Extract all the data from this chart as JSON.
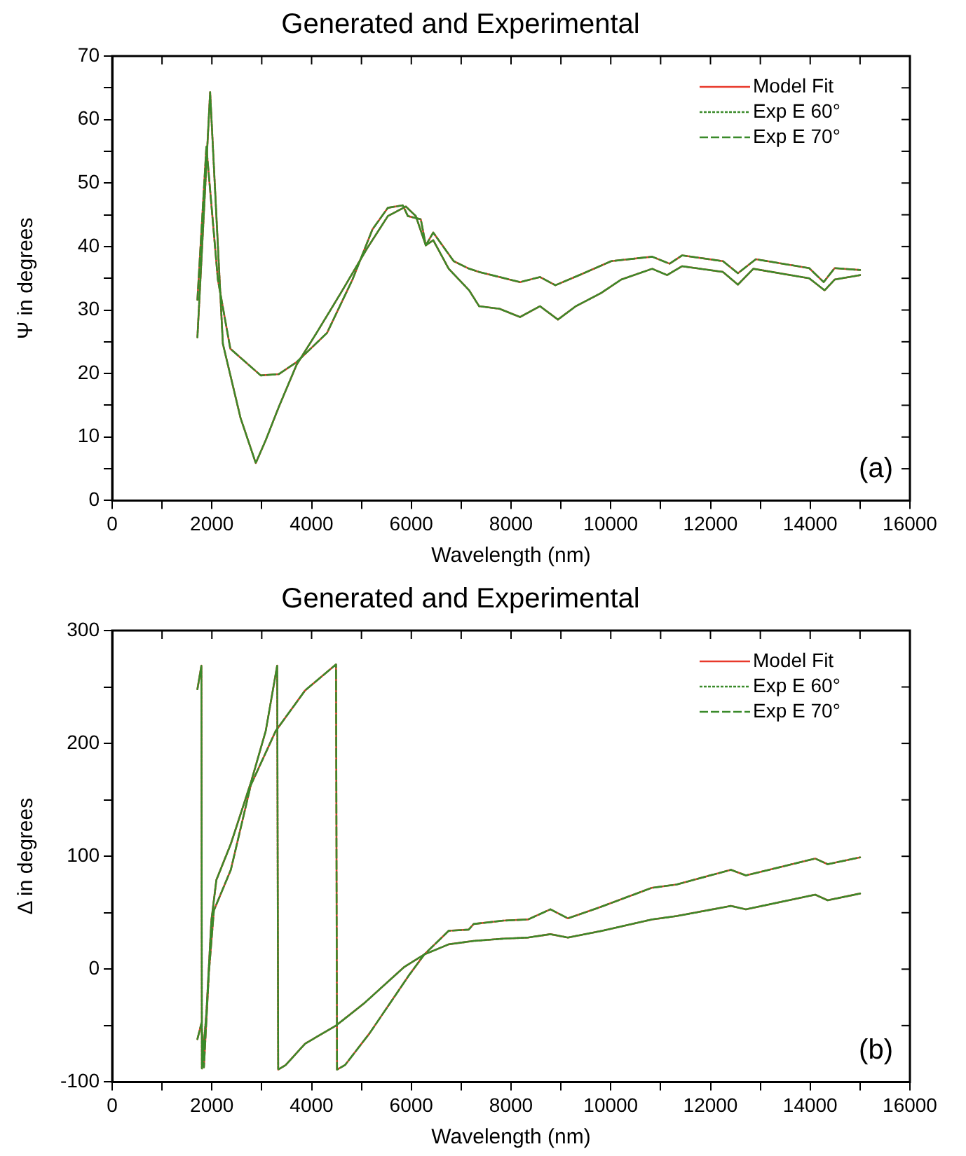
{
  "chart_data": [
    {
      "type": "line",
      "title": "Generated and Experimental",
      "xlabel": "Wavelength (nm)",
      "ylabel": "Ψ in degrees",
      "annotations": [
        "(a)"
      ],
      "legend": "top right",
      "grid": false,
      "marker": "none",
      "xlim": [
        0,
        16000
      ],
      "xticks": [
        0,
        {
          "value": 1000,
          "label": null
        },
        2000,
        {
          "value": 3000,
          "label": null
        },
        4000,
        {
          "value": 5000,
          "label": null
        },
        6000,
        {
          "value": 7000,
          "label": null
        },
        8000,
        {
          "value": 9000,
          "label": null
        },
        10000,
        {
          "value": 11000,
          "label": null
        },
        12000,
        {
          "value": 13000,
          "label": null
        },
        14000,
        {
          "value": 15000,
          "label": null
        },
        16000
      ],
      "ylim": [
        0,
        70
      ],
      "yticks": [
        0,
        {
          "value": 5,
          "label": null
        },
        10,
        {
          "value": 15,
          "label": null
        },
        20,
        {
          "value": 25,
          "label": null
        },
        30,
        {
          "value": 35,
          "label": null
        },
        40,
        {
          "value": 45,
          "label": null
        },
        50,
        {
          "value": 55,
          "label": null
        },
        60,
        {
          "value": 65,
          "label": null
        },
        70
      ],
      "series": [
        {
          "name": "Model Fit",
          "color": "#e8392b",
          "line_style": "solid",
          "x": [
            1710,
            1965,
            2220,
            2575,
            2880,
            3085,
            3340,
            3700,
            4100,
            4610,
            5120,
            5530,
            5890,
            6090,
            6290,
            6440,
            6750,
            7160,
            7360,
            7770,
            8180,
            8580,
            8940,
            9300,
            9810,
            10210,
            10830,
            11130,
            11430,
            12250,
            12550,
            12860,
            13980,
            14290,
            14490,
            15000
          ],
          "values": [
            25.7,
            64.3,
            24.7,
            13,
            5.9,
            9.6,
            14.7,
            21.4,
            26.4,
            33,
            39.8,
            44.8,
            46.3,
            44.8,
            40.2,
            41,
            36.5,
            33.1,
            30.6,
            30.2,
            28.9,
            30.6,
            28.5,
            30.6,
            32.7,
            34.8,
            36.5,
            35.5,
            36.9,
            36,
            34,
            36.5,
            35,
            33.1,
            34.8,
            35.5
          ]
        },
        {
          "name": "Exp E 60°",
          "color": "#3a8a2a",
          "line_style": "dotted",
          "x": [
            1710,
            1965,
            2220,
            2575,
            2880,
            3085,
            3340,
            3700,
            4100,
            4610,
            5120,
            5530,
            5890,
            6090,
            6290,
            6440,
            6750,
            7160,
            7360,
            7770,
            8180,
            8580,
            8940,
            9300,
            9810,
            10210,
            10830,
            11130,
            11430,
            12250,
            12550,
            12860,
            13980,
            14290,
            14490,
            15000
          ],
          "values": [
            25.7,
            64.3,
            24.7,
            13,
            5.9,
            9.6,
            14.7,
            21.4,
            26.4,
            33,
            39.8,
            44.8,
            46.3,
            44.8,
            40.2,
            41,
            36.5,
            33.1,
            30.6,
            30.2,
            28.9,
            30.6,
            28.5,
            30.6,
            32.7,
            34.8,
            36.5,
            35.5,
            36.9,
            36,
            34,
            36.5,
            35,
            33.1,
            34.8,
            35.5
          ]
        },
        {
          "name": "Exp E 70°",
          "color": "#3a8a2a",
          "line_style": "dashed",
          "x": [
            1710,
            1890,
            2120,
            2370,
            2980,
            3340,
            3700,
            4310,
            4820,
            5220,
            5530,
            5830,
            5930,
            6190,
            6290,
            6440,
            6850,
            7160,
            7360,
            8180,
            8580,
            8890,
            9400,
            10010,
            10830,
            11180,
            11430,
            12250,
            12550,
            12910,
            13980,
            14270,
            14490,
            15000
          ],
          "values": [
            31.6,
            55.7,
            34.8,
            23.9,
            19.7,
            19.9,
            21.8,
            26.4,
            34.8,
            42.7,
            46.1,
            46.5,
            44.8,
            44.3,
            40.2,
            42.2,
            37.7,
            36.5,
            36,
            34.4,
            35.2,
            33.9,
            35.6,
            37.7,
            38.4,
            37.3,
            38.6,
            37.7,
            35.8,
            38,
            36.6,
            34.4,
            36.6,
            36.3
          ]
        },
        {
          "color": "#e8392b",
          "line_style": "solid",
          "x": [
            1710,
            1890,
            2120,
            2370,
            2980,
            3340,
            3700,
            4310,
            4820,
            5220,
            5530,
            5830,
            5930,
            6190,
            6290,
            6440,
            6850,
            7160,
            7360,
            8180,
            8580,
            8890,
            9400,
            10010,
            10830,
            11180,
            11430,
            12250,
            12550,
            12910,
            13980,
            14270,
            14490,
            15000
          ],
          "values": [
            31.6,
            55.7,
            34.8,
            23.9,
            19.7,
            19.9,
            21.8,
            26.4,
            34.8,
            42.7,
            46.1,
            46.5,
            44.8,
            44.3,
            40.2,
            42.2,
            37.7,
            36.5,
            36,
            34.4,
            35.2,
            33.9,
            35.6,
            37.7,
            38.4,
            37.3,
            38.6,
            37.7,
            35.8,
            38,
            36.6,
            34.4,
            36.6,
            36.3
          ]
        }
      ]
    },
    {
      "type": "line",
      "title": "Generated and Experimental",
      "xlabel": "Wavelength (nm)",
      "ylabel": "Δ in degrees",
      "annotations": [
        "(b)"
      ],
      "legend": "top right",
      "grid": false,
      "marker": "none",
      "xlim": [
        0,
        16000
      ],
      "xticks": [
        0,
        {
          "value": 1000,
          "label": null
        },
        2000,
        {
          "value": 3000,
          "label": null
        },
        4000,
        {
          "value": 5000,
          "label": null
        },
        6000,
        {
          "value": 7000,
          "label": null
        },
        8000,
        {
          "value": 9000,
          "label": null
        },
        10000,
        {
          "value": 11000,
          "label": null
        },
        12000,
        {
          "value": 13000,
          "label": null
        },
        14000,
        {
          "value": 15000,
          "label": null
        },
        16000
      ],
      "ylim": [
        -100,
        300
      ],
      "yticks": [
        -100,
        {
          "value": -50,
          "label": null
        },
        0,
        {
          "value": 50,
          "label": null
        },
        100,
        {
          "value": 150,
          "label": null
        },
        200,
        {
          "value": 250,
          "label": null
        },
        300
      ],
      "series": [
        {
          "name": "Model Fit",
          "color": "#e8392b",
          "line_style": "solid",
          "x": [
            1710,
            1790,
            1800,
            1890,
            1990,
            2090,
            2380,
            2780,
            3080,
            3310,
            3330,
            3480,
            3870,
            4490,
            5060,
            5860,
            6260,
            6750,
            7250,
            7850,
            8340,
            8790,
            9140,
            9830,
            10820,
            11320,
            12410,
            12710,
            14100,
            14350,
            15000
          ],
          "values": [
            248,
            269,
            -88,
            -39,
            43,
            79,
            111,
            165,
            211,
            269,
            -89,
            -85,
            -66,
            -50,
            -30,
            2,
            13,
            22,
            25,
            27,
            28,
            31,
            28,
            34,
            44,
            47,
            56,
            53,
            66,
            61,
            67
          ]
        },
        {
          "name": "Exp E 60°",
          "color": "#3a8a2a",
          "line_style": "dotted",
          "x": [
            1710,
            1790,
            1800,
            1890,
            1990,
            2090,
            2380,
            2780,
            3080,
            3310,
            3330,
            3480,
            3870,
            4490,
            5060,
            5860,
            6260,
            6750,
            7250,
            7850,
            8340,
            8790,
            9140,
            9830,
            10820,
            11320,
            12410,
            12710,
            14100,
            14350,
            15000
          ],
          "values": [
            248,
            269,
            -88,
            -39,
            43,
            79,
            111,
            165,
            211,
            269,
            -89,
            -85,
            -66,
            -50,
            -30,
            2,
            13,
            22,
            25,
            27,
            28,
            31,
            28,
            34,
            44,
            47,
            56,
            53,
            66,
            61,
            67
          ]
        },
        {
          "name": "Exp E 70°",
          "color": "#3a8a2a",
          "line_style": "dashed",
          "x": [
            1710,
            1790,
            1840,
            1940,
            2040,
            2380,
            2780,
            3280,
            3870,
            4490,
            4510,
            4670,
            5160,
            5960,
            6260,
            6750,
            7150,
            7250,
            7850,
            8340,
            8790,
            9140,
            9730,
            10820,
            11320,
            12410,
            12710,
            14100,
            14350,
            15000
          ],
          "values": [
            -62,
            -48,
            -87,
            -3,
            52,
            88,
            163,
            211,
            247,
            270,
            -89,
            -85,
            -57,
            -5,
            13,
            34,
            35,
            40,
            43,
            44,
            53,
            45,
            54,
            72,
            75,
            88,
            83,
            98,
            93,
            99
          ]
        },
        {
          "color": "#e8392b",
          "line_style": "solid",
          "x": [
            1710,
            1790,
            1840,
            1940,
            2040,
            2380,
            2780,
            3280,
            3870,
            4490,
            4510,
            4670,
            5160,
            5960,
            6260,
            6750,
            7150,
            7250,
            7850,
            8340,
            8790,
            9140,
            9730,
            10820,
            11320,
            12410,
            12710,
            14100,
            14350,
            15000
          ],
          "values": [
            -62,
            -48,
            -87,
            -3,
            52,
            88,
            163,
            211,
            247,
            270,
            -89,
            -85,
            -57,
            -5,
            13,
            34,
            35,
            40,
            43,
            44,
            53,
            45,
            54,
            72,
            75,
            88,
            83,
            98,
            93,
            99
          ]
        }
      ]
    }
  ]
}
